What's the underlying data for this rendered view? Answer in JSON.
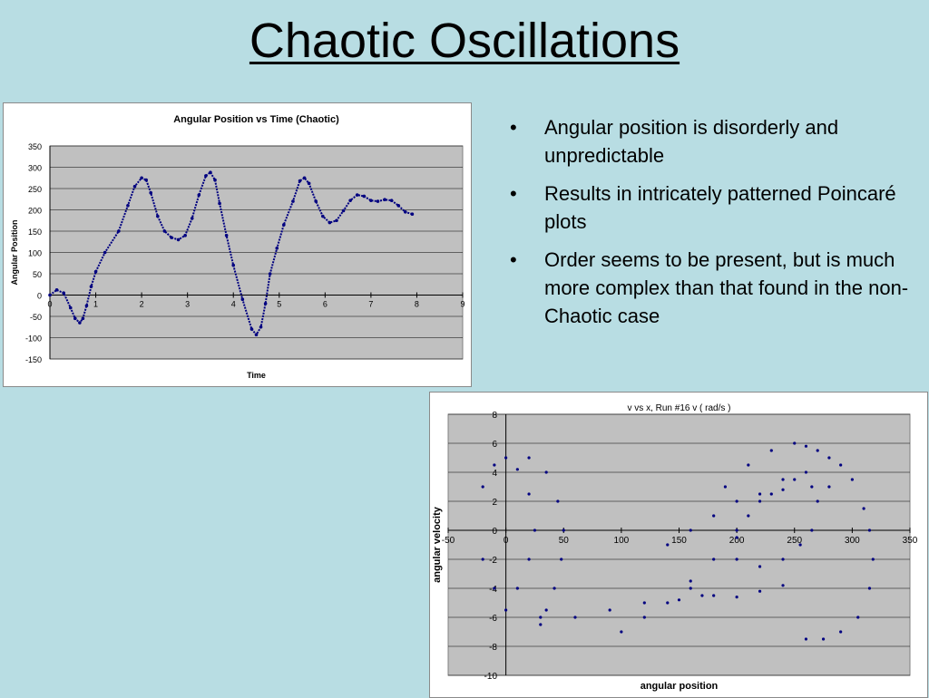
{
  "slide": {
    "title": "Chaotic Oscillations",
    "bullets": [
      "Angular position is disorderly and unpredictable",
      "Results in intricately patterned Poincaré plots",
      "Order seems to be present, but is much more complex than that found in the non-Chaotic case"
    ],
    "bullet_symbol": "•"
  },
  "colors": {
    "background": "#b8dde3",
    "plot_area": "#c0c0c0",
    "series": "#000080"
  },
  "chart_data": [
    {
      "type": "scatter",
      "title": "Angular Position vs Time (Chaotic)",
      "xlabel": "Time",
      "ylabel": "Angular Position",
      "xlim": [
        0,
        9
      ],
      "ylim": [
        -150,
        350
      ],
      "xticks": [
        0,
        1,
        2,
        3,
        4,
        5,
        6,
        7,
        8,
        9
      ],
      "yticks": [
        -150,
        -100,
        -50,
        0,
        50,
        100,
        150,
        200,
        250,
        300,
        350
      ],
      "grid": true,
      "legend": "none",
      "series": [
        {
          "x": [
            0,
            0.15,
            0.3,
            0.45,
            0.55,
            0.65,
            0.72,
            0.8,
            0.9,
            1.0,
            1.2,
            1.5,
            1.7,
            1.85,
            2.0,
            2.1,
            2.2,
            2.35,
            2.5,
            2.65,
            2.8,
            2.95,
            3.1,
            3.25,
            3.4,
            3.5,
            3.6,
            3.7,
            3.85,
            4.0,
            4.2,
            4.4,
            4.5,
            4.6,
            4.7,
            4.8,
            4.95,
            5.1,
            5.3,
            5.45,
            5.55,
            5.65,
            5.8,
            5.95,
            6.1,
            6.25,
            6.4,
            6.55,
            6.7,
            6.85,
            7.0,
            7.15,
            7.3,
            7.45,
            7.6,
            7.75,
            7.9
          ],
          "y": [
            0,
            12,
            5,
            -30,
            -55,
            -65,
            -55,
            -25,
            20,
            55,
            100,
            150,
            210,
            255,
            275,
            270,
            240,
            185,
            150,
            135,
            130,
            140,
            180,
            235,
            280,
            288,
            270,
            215,
            140,
            70,
            -10,
            -80,
            -93,
            -75,
            -20,
            50,
            110,
            165,
            220,
            268,
            275,
            262,
            220,
            185,
            170,
            175,
            198,
            222,
            235,
            232,
            222,
            220,
            224,
            222,
            210,
            195,
            190
          ]
        }
      ]
    },
    {
      "type": "scatter",
      "title": "v vs x, Run #16 v ( rad/s )",
      "xlabel": "angular position",
      "ylabel": "angular velocity",
      "xlim": [
        -50,
        350
      ],
      "ylim": [
        -10,
        8
      ],
      "xticks": [
        -50,
        0,
        50,
        100,
        150,
        200,
        250,
        300,
        350
      ],
      "yticks": [
        -10,
        -8,
        -6,
        -4,
        -2,
        0,
        2,
        4,
        6,
        8
      ],
      "grid": true,
      "legend": "none",
      "series": [
        {
          "x": [
            -20,
            -10,
            0,
            10,
            20,
            25,
            20,
            10,
            0,
            -10,
            -20
          ],
          "y": [
            3,
            4.5,
            5,
            4.2,
            2.5,
            0,
            -2,
            -4,
            -5.5,
            -4,
            -2
          ]
        },
        {
          "x": [
            20,
            35,
            45,
            50,
            48,
            42,
            35,
            30
          ],
          "y": [
            5,
            4,
            2,
            0,
            -2,
            -4,
            -5.5,
            -6.5
          ]
        },
        {
          "x": [
            30,
            60,
            90,
            120,
            150,
            170
          ],
          "y": [
            -6,
            -6,
            -5.5,
            -5,
            -4.8,
            -4.5
          ]
        },
        {
          "x": [
            100,
            120,
            140,
            160,
            180,
            200,
            220,
            240,
            260,
            280
          ],
          "y": [
            -7,
            -6,
            -5,
            -3.5,
            -2,
            0,
            2,
            3.5,
            4,
            3
          ]
        },
        {
          "x": [
            190,
            210,
            230,
            250,
            260,
            270,
            280,
            290,
            300,
            310,
            315,
            318,
            315,
            305,
            290,
            275,
            260
          ],
          "y": [
            3,
            4.5,
            5.5,
            6,
            5.8,
            5.5,
            5,
            4.5,
            3.5,
            1.5,
            0,
            -2,
            -4,
            -6,
            -7,
            -7.5,
            -7.5
          ]
        },
        {
          "x": [
            200,
            220,
            240,
            255,
            265,
            270,
            265,
            250,
            230,
            210,
            200
          ],
          "y": [
            -2,
            -2.5,
            -2,
            -1,
            0,
            2,
            3,
            3.5,
            2.5,
            1,
            -0.5
          ]
        },
        {
          "x": [
            140,
            160,
            180,
            200,
            220,
            240
          ],
          "y": [
            -1,
            0,
            1,
            2,
            2.5,
            2.8
          ]
        },
        {
          "x": [
            160,
            180,
            200,
            220,
            240
          ],
          "y": [
            -4,
            -4.5,
            -4.6,
            -4.2,
            -3.8
          ]
        }
      ]
    }
  ]
}
